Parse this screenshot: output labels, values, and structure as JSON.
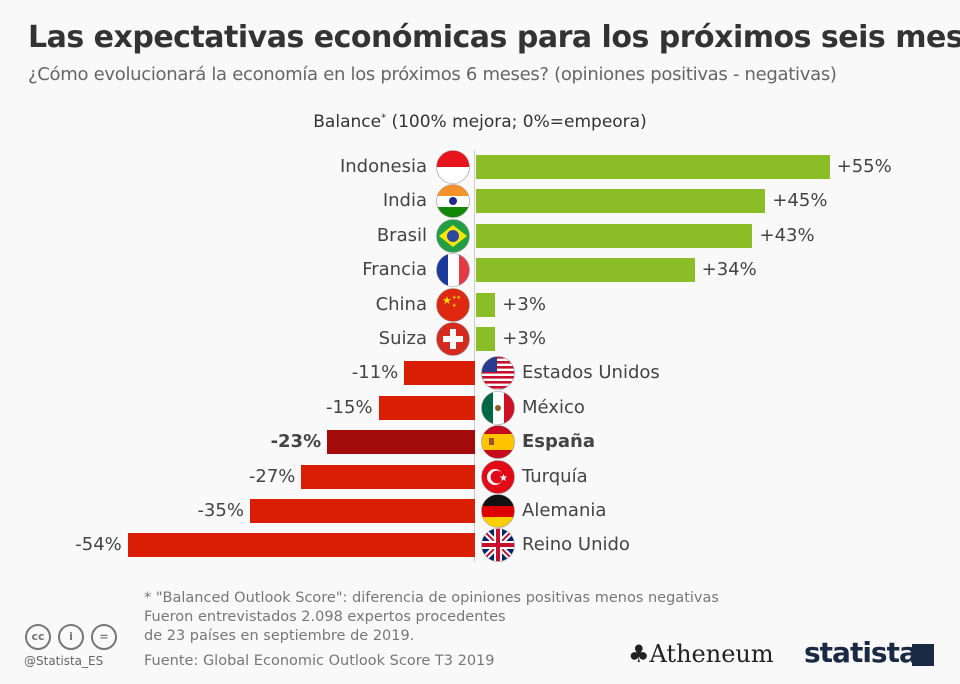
{
  "title": "Las expectativas económicas para los próximos seis meses",
  "subtitle": "¿Cómo evolucionará la economía en los próximos 6 meses? (opiniones positivas - negativas)",
  "chart_data": {
    "type": "bar",
    "orientation": "horizontal",
    "axis_label": "Balance",
    "axis_label_sup": "*",
    "axis_label_rest": " (100% mejora; 0%=empeora)",
    "categories": [
      "Indonesia",
      "India",
      "Brasil",
      "Francia",
      "China",
      "Suiza",
      "Estados Unidos",
      "México",
      "España",
      "Turquía",
      "Alemania",
      "Reino Unido"
    ],
    "values": [
      55,
      45,
      43,
      34,
      3,
      3,
      -11,
      -15,
      -23,
      -27,
      -35,
      -54
    ],
    "value_labels": [
      "+55%",
      "+45%",
      "+43%",
      "+34%",
      "+3%",
      "+3%",
      "-11%",
      "-15%",
      "-23%",
      "-27%",
      "-35%",
      "-54%"
    ],
    "highlight": "España",
    "colors": {
      "positive": "#8bbd27",
      "negative": "#d91e05",
      "highlight": "#a30a0a"
    },
    "flags": [
      "indonesia-flag",
      "india-flag",
      "brazil-flag",
      "france-flag",
      "china-flag",
      "switzerland-flag",
      "usa-flag",
      "mexico-flag",
      "spain-flag",
      "turkey-flag",
      "germany-flag",
      "uk-flag"
    ]
  },
  "footer": {
    "note": "* \"Balanced Outlook Score\": diferencia de opiniones positivas menos negativas",
    "note2": "Fueron entrevistados 2.098 expertos procedentes",
    "note3": "de 23 países en septiembre de 2019.",
    "source": "Fuente: Global Economic Outlook Score T3 2019",
    "handle": "@Statista_ES",
    "cc": [
      "cc",
      "i",
      "="
    ],
    "logo1": "Atheneum",
    "logo2": "statista"
  }
}
